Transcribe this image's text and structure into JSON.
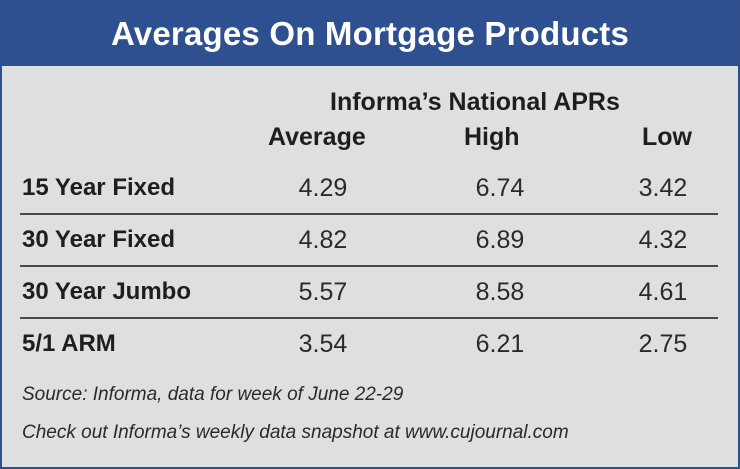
{
  "title": "Averages On Mortgage Products",
  "group_title": "Informa’s National APRs",
  "columns": {
    "average": "Average",
    "high": "High",
    "low": "Low"
  },
  "rows": [
    {
      "product": "15 Year Fixed",
      "average": "4.29",
      "high": "6.74",
      "low": "3.42"
    },
    {
      "product": "30 Year Fixed",
      "average": "4.82",
      "high": "6.89",
      "low": "4.32"
    },
    {
      "product": "30 Year Jumbo",
      "average": "5.57",
      "high": "8.58",
      "low": "4.61"
    },
    {
      "product": "5/1 ARM",
      "average": "3.54",
      "high": "6.21",
      "low": "2.75"
    }
  ],
  "source": "Source: Informa, data for week of June 22-29",
  "note": "Check out Informa’s weekly data snapshot at www.cujournal.com",
  "colors": {
    "header_bg": "#2e4f90",
    "panel_bg": "#dedfe1",
    "text": "#1e1e1e"
  }
}
